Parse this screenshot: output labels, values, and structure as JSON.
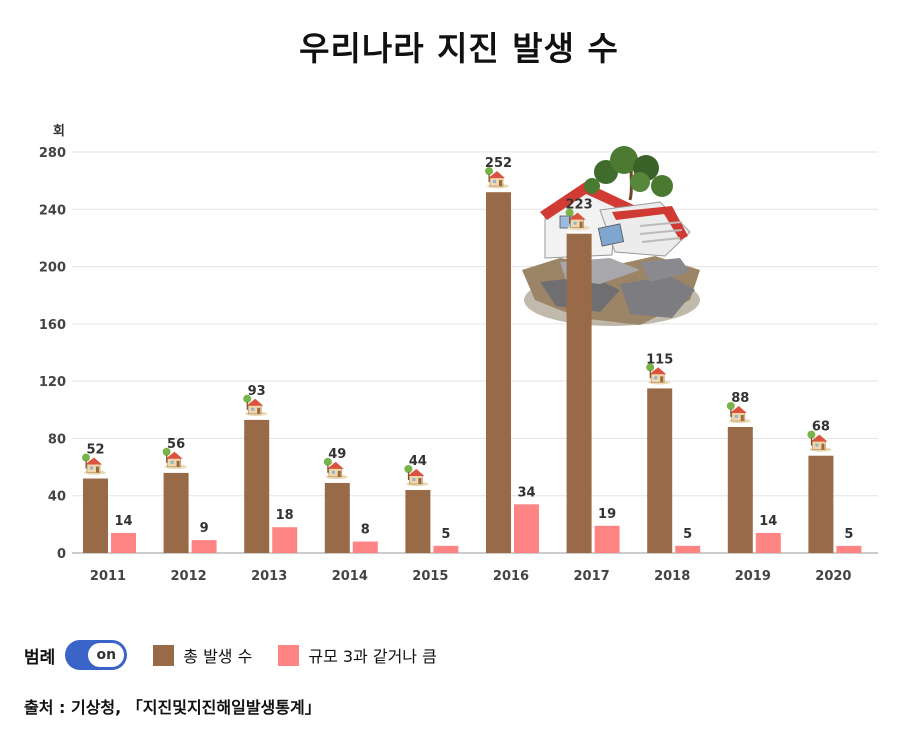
{
  "chart_data": {
    "type": "bar",
    "title": "우리나라 지진 발생 수",
    "ylabel": "회",
    "xlabel": "",
    "ylim": [
      0,
      280
    ],
    "yticks": [
      "0",
      "40",
      "80",
      "120",
      "160",
      "200",
      "240",
      "280"
    ],
    "grid": true,
    "categories": [
      "2011",
      "2012",
      "2013",
      "2014",
      "2015",
      "2016",
      "2017",
      "2018",
      "2019",
      "2020"
    ],
    "series": [
      {
        "name": "총 발생 수",
        "color": "#996a48",
        "values": [
          52,
          56,
          93,
          49,
          44,
          252,
          223,
          115,
          88,
          68
        ]
      },
      {
        "name": "규모 3과 같거나 큼",
        "color": "#ff8585",
        "values": [
          14,
          9,
          18,
          8,
          5,
          34,
          19,
          5,
          14,
          5
        ]
      }
    ],
    "legend_position": "bottom-left",
    "icons": [
      "house-icon",
      "collapsed-house-illustration"
    ]
  },
  "legend": {
    "title": "범례",
    "toggle_label": "on",
    "toggle_color": "#3b64c9"
  },
  "source": {
    "text": "출처 : 기상청, 「지진및지진해일발생통계」"
  }
}
